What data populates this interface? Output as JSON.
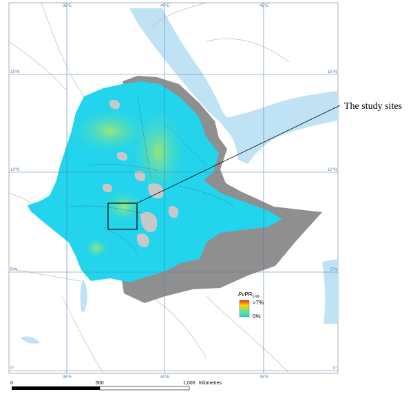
{
  "callout": {
    "label": "The study sites"
  },
  "legend": {
    "title_main": "Pv",
    "title_rest": "PR",
    "title_sub": "1-99",
    "high": ">7%",
    "low": "0%"
  },
  "scale": {
    "ticks": [
      "0",
      "500",
      "1,000"
    ],
    "unit": "Kilometres"
  },
  "grid": {
    "lon_labels": [
      "35°E",
      "40°E",
      "45°E"
    ],
    "lat_labels": [
      "15°N",
      "10°N",
      "5°N",
      "0°"
    ]
  },
  "colors": {
    "sea": "#bfe3f5",
    "unstable": "#8f8f8f",
    "risk_low": "#22d4ec",
    "risk_mid": "#7be07a",
    "risk_high": "#ff2a00",
    "lake": "#c8c8c8",
    "grid": "#4a78b8"
  }
}
